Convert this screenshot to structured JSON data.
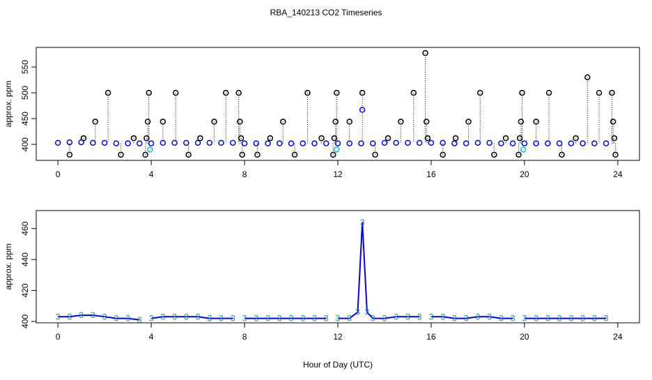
{
  "title": "RBA_140213  CO2 Timeseries",
  "chart_data": [
    {
      "type": "scatter",
      "ylabel": "approx. ppm",
      "xlim": [
        -0.93,
        24.93
      ],
      "ylim": [
        369,
        588
      ],
      "xticks": [
        0,
        4,
        8,
        12,
        16,
        20,
        24
      ],
      "yticks": [
        400,
        450,
        500,
        550
      ],
      "series": [
        {
          "color": "#0000ff",
          "droplines": false,
          "x": [
            0,
            0.5,
            1,
            1.5,
            2,
            2.5,
            3,
            3.5,
            4,
            4.5,
            5,
            5.5,
            6,
            6.5,
            7,
            7.5,
            8,
            8.5,
            9,
            9.5,
            10,
            10.5,
            11,
            11.5,
            12,
            12.5,
            13,
            13.5,
            14,
            14.5,
            15,
            15.5,
            16,
            16.5,
            17,
            17.5,
            18,
            18.5,
            19,
            19.5,
            20,
            20.5,
            21,
            21.5,
            22,
            22.5,
            23,
            23.5
          ],
          "values": [
            403,
            404,
            404,
            403,
            403,
            402,
            402,
            402,
            402,
            403,
            403,
            403,
            403,
            403,
            403,
            403,
            402,
            402,
            402,
            402,
            402,
            402,
            402,
            402,
            402,
            402,
            402,
            402,
            403,
            403,
            403,
            403,
            403,
            403,
            402,
            402,
            403,
            403,
            402,
            402,
            402,
            402,
            402,
            402,
            402,
            402,
            402,
            402
          ]
        },
        {
          "color": "#000000",
          "droplines": true,
          "x": [
            0.5,
            1.1,
            1.6,
            2.15,
            2.7,
            3.25,
            3.75,
            3.8,
            3.85,
            3.9,
            4.5,
            5.05,
            5.6,
            6.1,
            6.7,
            7.2,
            7.75,
            7.8,
            7.85,
            7.9,
            8.55,
            9.1,
            9.65,
            10.15,
            10.7,
            11.3,
            11.8,
            11.85,
            11.9,
            11.95,
            12.5,
            13.05,
            13.6,
            14.15,
            14.7,
            15.25,
            15.75,
            15.8,
            15.85,
            16.5,
            17.05,
            17.6,
            18.1,
            18.7,
            19.2,
            19.75,
            19.8,
            19.85,
            19.9,
            20.5,
            21.05,
            21.6,
            22.2,
            22.7,
            23.2,
            23.75,
            23.8,
            23.85,
            23.9
          ],
          "values": [
            380,
            412,
            444,
            500,
            380,
            412,
            380,
            412,
            444,
            500,
            444,
            500,
            380,
            412,
            444,
            500,
            500,
            444,
            412,
            380,
            380,
            412,
            444,
            380,
            500,
            412,
            380,
            412,
            444,
            500,
            444,
            500,
            380,
            412,
            444,
            500,
            577,
            444,
            412,
            380,
            412,
            444,
            500,
            380,
            412,
            380,
            412,
            444,
            500,
            444,
            500,
            380,
            412,
            530,
            500,
            500,
            444,
            412,
            380
          ]
        },
        {
          "color": "#00c8c8",
          "droplines": false,
          "x": [
            3.95,
            11.95,
            19.95
          ],
          "values": [
            390,
            390,
            390
          ]
        },
        {
          "color": "#0000ff",
          "droplines": false,
          "x": [
            13.05
          ],
          "values": [
            467
          ]
        }
      ]
    },
    {
      "type": "line",
      "ylabel": "approx. ppm",
      "xlabel": "Hour of Day (UTC)",
      "xlim": [
        -0.93,
        24.93
      ],
      "ylim": [
        399.1,
        471.6
      ],
      "xticks": [
        0,
        4,
        8,
        12,
        16,
        20,
        24
      ],
      "yticks": [
        400,
        420,
        440,
        460
      ],
      "series": [
        {
          "color": "#0000ff",
          "marker_label": "3",
          "marker_color": "#1e8b8b",
          "x": [
            0,
            0.5,
            1,
            1.5,
            2,
            2.5,
            3,
            3.5,
            3.9,
            4,
            4.5,
            5,
            5.5,
            6,
            6.5,
            7,
            7.5,
            7.9,
            8,
            8.5,
            9,
            9.5,
            10,
            10.5,
            11,
            11.5,
            11.9,
            12,
            12.5,
            12.85,
            13.05,
            13.25,
            13.5,
            14,
            14.5,
            15,
            15.5,
            15.9,
            16,
            16.5,
            17,
            17.5,
            18,
            18.5,
            19,
            19.5,
            19.9,
            20,
            20.5,
            21,
            21.5,
            22,
            22.5,
            23,
            23.5
          ],
          "values": [
            403,
            403,
            404,
            404,
            403,
            402,
            402,
            401,
            null,
            402,
            403,
            403,
            403,
            403,
            402,
            402,
            402,
            null,
            402,
            402,
            402,
            402,
            402,
            402,
            402,
            402,
            null,
            402,
            402,
            406,
            464,
            406,
            402,
            402,
            403,
            403,
            403,
            null,
            403,
            403,
            402,
            402,
            403,
            403,
            402,
            402,
            null,
            402,
            402,
            402,
            402,
            402,
            402,
            402,
            402
          ]
        }
      ]
    }
  ]
}
